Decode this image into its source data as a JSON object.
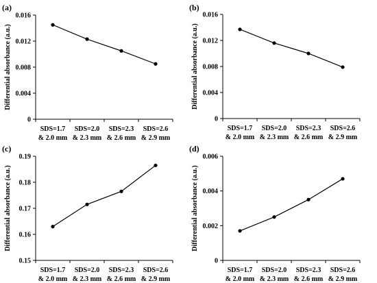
{
  "chart_data": [
    {
      "panel": "(a)",
      "type": "line",
      "ylabel": "Differential absorbance (a.u.)",
      "categories": [
        [
          "SDS=1.7",
          "& 2.0 mm"
        ],
        [
          "SDS=2.0",
          "& 2.3 mm"
        ],
        [
          "SDS=2.3",
          "& 2.6 mm"
        ],
        [
          "SDS=2.6",
          "& 2.9 mm"
        ]
      ],
      "values": [
        0.0145,
        0.0123,
        0.0105,
        0.0085
      ],
      "ylim": [
        0,
        0.016
      ],
      "yticks": [
        "0",
        "0.004",
        "0.008",
        "0.012",
        "0.016"
      ],
      "grid": false,
      "legend": "none"
    },
    {
      "panel": "(b)",
      "type": "line",
      "ylabel": "Differential absorbance (a.u.)",
      "categories": [
        [
          "SDS=1.7",
          "& 2.0 mm"
        ],
        [
          "SDS=2.0",
          "& 2.3 mm"
        ],
        [
          "SDS=2.3",
          "& 2.6 mm"
        ],
        [
          "SDS=2.6",
          "& 2.9 mm"
        ]
      ],
      "values": [
        0.0137,
        0.0116,
        0.01,
        0.0079
      ],
      "ylim": [
        0,
        0.016
      ],
      "yticks": [
        "0",
        "0.004",
        "0.008",
        "0.012",
        "0.016"
      ],
      "grid": false,
      "legend": "none"
    },
    {
      "panel": "(c)",
      "type": "line",
      "ylabel": "Differential absorbance (a.u.)",
      "categories": [
        [
          "SDS=1.7",
          "& 2.0 mm"
        ],
        [
          "SDS=2.0",
          "& 2.3 mm"
        ],
        [
          "SDS=2.3",
          "& 2.6 mm"
        ],
        [
          "SDS=2.6",
          "& 2.9 mm"
        ]
      ],
      "values": [
        0.163,
        0.1715,
        0.1765,
        0.1865
      ],
      "ylim": [
        0.15,
        0.19
      ],
      "yticks": [
        "0.15",
        "0.16",
        "0.17",
        "0.18",
        "0.19"
      ],
      "grid": false,
      "legend": "none"
    },
    {
      "panel": "(d)",
      "type": "line",
      "ylabel": "Differential absorbance (a.u.)",
      "categories": [
        [
          "SDS=1.7",
          "& 2.0 mm"
        ],
        [
          "SDS=2.0",
          "& 2.3 mm"
        ],
        [
          "SDS=2.3",
          "& 2.6 mm"
        ],
        [
          "SDS=2.6",
          "& 2.9 mm"
        ]
      ],
      "values": [
        0.0017,
        0.0025,
        0.0035,
        0.0047
      ],
      "ylim": [
        0,
        0.006
      ],
      "yticks": [
        "0",
        "0.002",
        "0.004",
        "0.006"
      ],
      "grid": false,
      "legend": "none"
    }
  ]
}
